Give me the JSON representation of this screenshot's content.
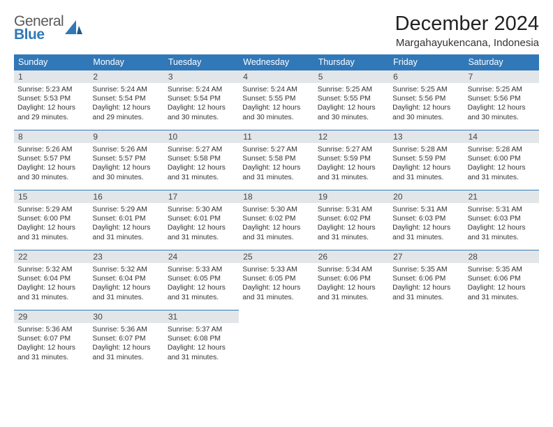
{
  "logo": {
    "line1": "General",
    "line2": "Blue"
  },
  "title": "December 2024",
  "location": "Margahayukencana, Indonesia",
  "colors": {
    "header_bg": "#3178b8",
    "header_text": "#ffffff",
    "daynum_bg": "#e3e6e9",
    "border": "#3178b8",
    "text": "#333333"
  },
  "day_headers": [
    "Sunday",
    "Monday",
    "Tuesday",
    "Wednesday",
    "Thursday",
    "Friday",
    "Saturday"
  ],
  "weeks": [
    [
      {
        "n": "1",
        "sr": "5:23 AM",
        "ss": "5:53 PM",
        "dl": "12 hours and 29 minutes."
      },
      {
        "n": "2",
        "sr": "5:24 AM",
        "ss": "5:54 PM",
        "dl": "12 hours and 29 minutes."
      },
      {
        "n": "3",
        "sr": "5:24 AM",
        "ss": "5:54 PM",
        "dl": "12 hours and 30 minutes."
      },
      {
        "n": "4",
        "sr": "5:24 AM",
        "ss": "5:55 PM",
        "dl": "12 hours and 30 minutes."
      },
      {
        "n": "5",
        "sr": "5:25 AM",
        "ss": "5:55 PM",
        "dl": "12 hours and 30 minutes."
      },
      {
        "n": "6",
        "sr": "5:25 AM",
        "ss": "5:56 PM",
        "dl": "12 hours and 30 minutes."
      },
      {
        "n": "7",
        "sr": "5:25 AM",
        "ss": "5:56 PM",
        "dl": "12 hours and 30 minutes."
      }
    ],
    [
      {
        "n": "8",
        "sr": "5:26 AM",
        "ss": "5:57 PM",
        "dl": "12 hours and 30 minutes."
      },
      {
        "n": "9",
        "sr": "5:26 AM",
        "ss": "5:57 PM",
        "dl": "12 hours and 30 minutes."
      },
      {
        "n": "10",
        "sr": "5:27 AM",
        "ss": "5:58 PM",
        "dl": "12 hours and 31 minutes."
      },
      {
        "n": "11",
        "sr": "5:27 AM",
        "ss": "5:58 PM",
        "dl": "12 hours and 31 minutes."
      },
      {
        "n": "12",
        "sr": "5:27 AM",
        "ss": "5:59 PM",
        "dl": "12 hours and 31 minutes."
      },
      {
        "n": "13",
        "sr": "5:28 AM",
        "ss": "5:59 PM",
        "dl": "12 hours and 31 minutes."
      },
      {
        "n": "14",
        "sr": "5:28 AM",
        "ss": "6:00 PM",
        "dl": "12 hours and 31 minutes."
      }
    ],
    [
      {
        "n": "15",
        "sr": "5:29 AM",
        "ss": "6:00 PM",
        "dl": "12 hours and 31 minutes."
      },
      {
        "n": "16",
        "sr": "5:29 AM",
        "ss": "6:01 PM",
        "dl": "12 hours and 31 minutes."
      },
      {
        "n": "17",
        "sr": "5:30 AM",
        "ss": "6:01 PM",
        "dl": "12 hours and 31 minutes."
      },
      {
        "n": "18",
        "sr": "5:30 AM",
        "ss": "6:02 PM",
        "dl": "12 hours and 31 minutes."
      },
      {
        "n": "19",
        "sr": "5:31 AM",
        "ss": "6:02 PM",
        "dl": "12 hours and 31 minutes."
      },
      {
        "n": "20",
        "sr": "5:31 AM",
        "ss": "6:03 PM",
        "dl": "12 hours and 31 minutes."
      },
      {
        "n": "21",
        "sr": "5:31 AM",
        "ss": "6:03 PM",
        "dl": "12 hours and 31 minutes."
      }
    ],
    [
      {
        "n": "22",
        "sr": "5:32 AM",
        "ss": "6:04 PM",
        "dl": "12 hours and 31 minutes."
      },
      {
        "n": "23",
        "sr": "5:32 AM",
        "ss": "6:04 PM",
        "dl": "12 hours and 31 minutes."
      },
      {
        "n": "24",
        "sr": "5:33 AM",
        "ss": "6:05 PM",
        "dl": "12 hours and 31 minutes."
      },
      {
        "n": "25",
        "sr": "5:33 AM",
        "ss": "6:05 PM",
        "dl": "12 hours and 31 minutes."
      },
      {
        "n": "26",
        "sr": "5:34 AM",
        "ss": "6:06 PM",
        "dl": "12 hours and 31 minutes."
      },
      {
        "n": "27",
        "sr": "5:35 AM",
        "ss": "6:06 PM",
        "dl": "12 hours and 31 minutes."
      },
      {
        "n": "28",
        "sr": "5:35 AM",
        "ss": "6:06 PM",
        "dl": "12 hours and 31 minutes."
      }
    ],
    [
      {
        "n": "29",
        "sr": "5:36 AM",
        "ss": "6:07 PM",
        "dl": "12 hours and 31 minutes."
      },
      {
        "n": "30",
        "sr": "5:36 AM",
        "ss": "6:07 PM",
        "dl": "12 hours and 31 minutes."
      },
      {
        "n": "31",
        "sr": "5:37 AM",
        "ss": "6:08 PM",
        "dl": "12 hours and 31 minutes."
      },
      null,
      null,
      null,
      null
    ]
  ],
  "labels": {
    "sunrise": "Sunrise:",
    "sunset": "Sunset:",
    "daylight": "Daylight:"
  }
}
